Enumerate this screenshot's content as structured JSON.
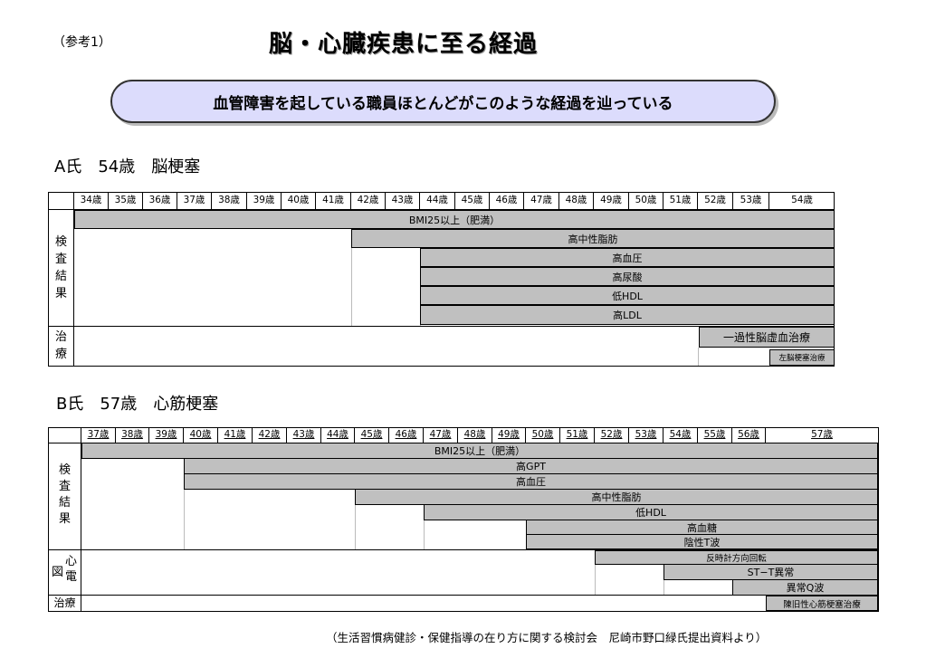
{
  "header": {
    "ref": "（参考1）",
    "title": "脳・心臓疾患に至る経過",
    "banner": "血管障害を起している職員ほとんどがこのような経過を辿っている"
  },
  "caseA": {
    "title": "A氏　54歳　脳梗塞",
    "ages": [
      "34歳",
      "35歳",
      "36歳",
      "37歳",
      "38歳",
      "39歳",
      "40歳",
      "41歳",
      "42歳",
      "43歳",
      "44歳",
      "45歳",
      "46歳",
      "47歳",
      "48歳",
      "49歳",
      "50歳",
      "51歳",
      "52歳",
      "53歳",
      "54歳"
    ],
    "group_exam": [
      "検",
      "査",
      "結",
      "果"
    ],
    "group_treat": [
      "治",
      "療"
    ],
    "bars": [
      "BMI25以上（肥満）",
      "高中性脂肪",
      "高血圧",
      "高尿酸",
      "低HDL",
      "高LDL",
      "一過性脳虚血治療",
      "左脳梗塞治療"
    ]
  },
  "caseB": {
    "title": "B氏　57歳　心筋梗塞",
    "ages": [
      "37歳",
      "38歳",
      "39歳",
      "40歳",
      "41歳",
      "42歳",
      "43歳",
      "44歳",
      "45歳",
      "46歳",
      "47歳",
      "48歳",
      "49歳",
      "50歳",
      "51歳",
      "52歳",
      "53歳",
      "54歳",
      "55歳",
      "56歳",
      "57歳"
    ],
    "group_exam": [
      "検",
      "査",
      "結",
      "果"
    ],
    "group_ecg_left": "図",
    "group_ecg_right": [
      "心",
      "電"
    ],
    "group_treat": "治療",
    "bars": [
      "BMI25以上（肥満）",
      "高GPT",
      "高血圧",
      "高中性脂肪",
      "低HDL",
      "高血糖",
      "陰性T波",
      "反時計方向回転",
      "ST−T異常",
      "異常Q波",
      "陳旧性心筋梗塞治療"
    ]
  },
  "source": "（生活習慣病健診・保健指導の在り方に関する検討会　尼崎市野口緑氏提出資料より）"
}
